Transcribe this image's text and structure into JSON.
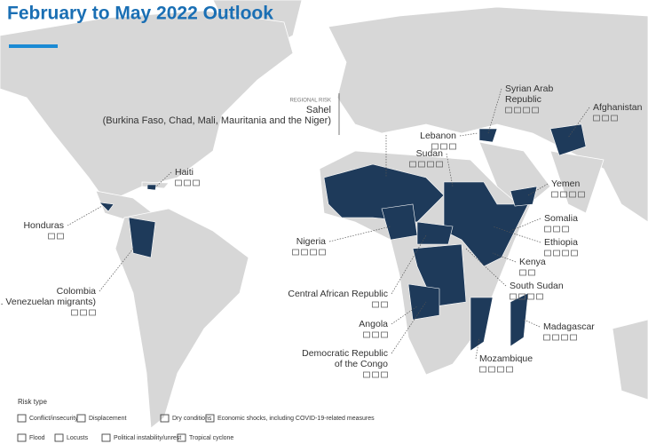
{
  "header": {
    "title": "February to May 2022 Outlook"
  },
  "regional_risk": {
    "tag": "REGIONAL RISK",
    "name": "Sahel",
    "detail": "(Burkina Faso, Chad, Mali, Mauritania and the Niger)"
  },
  "countries": [
    {
      "label": "Haiti"
    },
    {
      "label": "Honduras"
    },
    {
      "label": "Colombia",
      "detail": "(incl. Venezuelan migrants)"
    },
    {
      "label": "Nigeria"
    },
    {
      "label": "Central African Republic"
    },
    {
      "label": "Angola"
    },
    {
      "label": "Democratic Republic",
      "detail": "of the Congo"
    },
    {
      "label": "Syrian Arab",
      "detail": "Republic"
    },
    {
      "label": "Afghanistan"
    },
    {
      "label": "Lebanon"
    },
    {
      "label": "Sudan"
    },
    {
      "label": "Yemen"
    },
    {
      "label": "Somalia"
    },
    {
      "label": "Ethiopia"
    },
    {
      "label": "Kenya"
    },
    {
      "label": "South Sudan"
    },
    {
      "label": "Madagascar"
    },
    {
      "label": "Mozambique"
    }
  ],
  "legend": {
    "title": "Risk type",
    "items": [
      "Conflict/insecurity",
      "Displacement",
      "Dry conditions",
      "Economic shocks, including COVID-19-related measures",
      "Flood",
      "Locusts",
      "Political instability/unrest",
      "Tropical cyclone"
    ]
  }
}
